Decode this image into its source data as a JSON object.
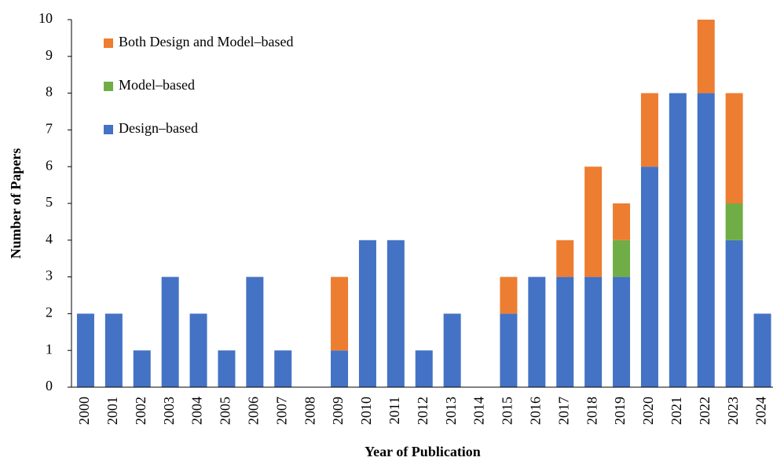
{
  "chart_data": {
    "type": "stacked-bar",
    "x_label": "Year of Publication",
    "y_label": "Number of Papers",
    "categories": [
      "2000",
      "2001",
      "2002",
      "2003",
      "2004",
      "2005",
      "2006",
      "2007",
      "2008",
      "2009",
      "2010",
      "2011",
      "2012",
      "2013",
      "2014",
      "2015",
      "2016",
      "2017",
      "2018",
      "2019",
      "2020",
      "2021",
      "2022",
      "2023",
      "2024"
    ],
    "series": [
      {
        "name": "Design–based",
        "color": "#4472c4",
        "values": [
          2,
          2,
          1,
          3,
          2,
          1,
          3,
          1,
          0,
          1,
          4,
          4,
          1,
          2,
          0,
          2,
          3,
          3,
          3,
          3,
          6,
          8,
          8,
          4,
          2
        ]
      },
      {
        "name": "Model–based",
        "color": "#70ad47",
        "values": [
          0,
          0,
          0,
          0,
          0,
          0,
          0,
          0,
          0,
          0,
          0,
          0,
          0,
          0,
          0,
          0,
          0,
          0,
          0,
          1,
          0,
          0,
          0,
          1,
          0
        ]
      },
      {
        "name": "Both Design and Model–based",
        "color": "#ed7d31",
        "values": [
          0,
          0,
          0,
          0,
          0,
          0,
          0,
          0,
          0,
          2,
          0,
          0,
          0,
          0,
          0,
          1,
          0,
          1,
          3,
          1,
          2,
          0,
          2,
          3,
          0
        ]
      }
    ],
    "ylim": [
      0,
      10
    ],
    "yticks": [
      0,
      1,
      2,
      3,
      4,
      5,
      6,
      7,
      8,
      9,
      10
    ],
    "legend": "top-left",
    "grid": false
  }
}
